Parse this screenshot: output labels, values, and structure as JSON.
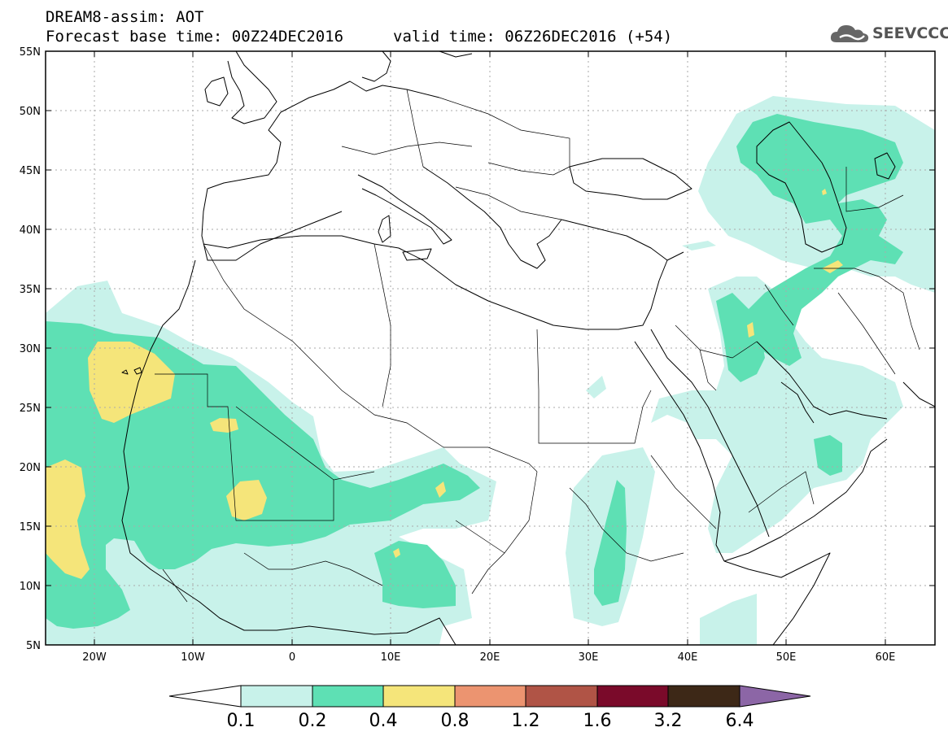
{
  "header": {
    "line1": "DREAM8-assim: AOT",
    "line2": "Forecast base time: 00Z24DEC2016",
    "valid": "valid time: 06Z26DEC2016 (+54)",
    "logo_text": "SEEVCCC"
  },
  "map": {
    "lat_labels": [
      "55N",
      "50N",
      "45N",
      "40N",
      "35N",
      "30N",
      "25N",
      "20N",
      "15N",
      "10N",
      "5N"
    ],
    "lon_labels": [
      "20W",
      "10W",
      "0",
      "10E",
      "20E",
      "30E",
      "40E",
      "50E",
      "60E"
    ]
  },
  "colorbar": {
    "labels": [
      "0.1",
      "0.2",
      "0.4",
      "0.8",
      "1.2",
      "1.6",
      "3.2",
      "6.4"
    ],
    "colors": [
      "#c8f2ea",
      "#5ee0b4",
      "#f5e57a",
      "#ec9470",
      "#b05446",
      "#7a0a2a",
      "#3d2817",
      "#8c66a6"
    ]
  }
}
